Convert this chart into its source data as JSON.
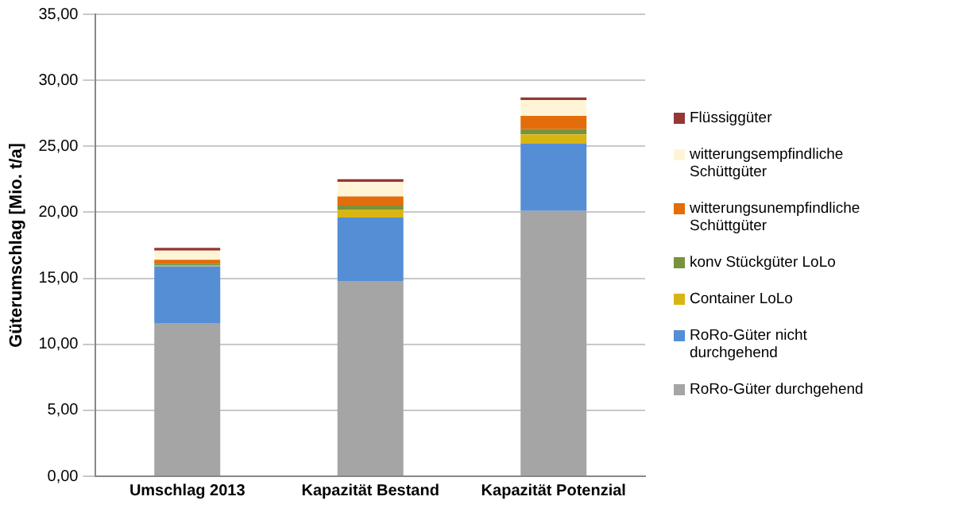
{
  "chart_data": {
    "type": "bar",
    "stacked": true,
    "ylabel": "Güterumschlag [Mio. t/a]",
    "categories": [
      "Umschlag 2013",
      "Kapazität Bestand",
      "Kapazität Potenzial"
    ],
    "series": [
      {
        "name": "RoRo-Güter durchgehend",
        "color": "#a5a5a5",
        "values": [
          11.6,
          14.8,
          20.1
        ]
      },
      {
        "name": "RoRo-Güter nicht durchgehend",
        "color": "#558ed5",
        "values": [
          4.3,
          4.8,
          5.1
        ]
      },
      {
        "name": "Container LoLo",
        "color": "#d9b514",
        "values": [
          0.1,
          0.6,
          0.7
        ]
      },
      {
        "name": "konv Stückgüter LoLo",
        "color": "#77933c",
        "values": [
          0.1,
          0.3,
          0.4
        ]
      },
      {
        "name": "witterungsunempfindliche Schüttgüter",
        "color": "#e46c0a",
        "values": [
          0.3,
          0.7,
          1.0
        ]
      },
      {
        "name": "witterungsempfindliche Schüttgüter",
        "color": "#fff5d6",
        "values": [
          0.7,
          1.1,
          1.2
        ]
      },
      {
        "name": "Flüssiggüter",
        "color": "#953735",
        "values": [
          0.2,
          0.2,
          0.2
        ]
      }
    ],
    "ylim": [
      0,
      35
    ],
    "yticks": [
      {
        "value": 0,
        "label": "0,00"
      },
      {
        "value": 5,
        "label": "5,00"
      },
      {
        "value": 10,
        "label": "10,00"
      },
      {
        "value": 15,
        "label": "15,00"
      },
      {
        "value": 20,
        "label": "20,00"
      },
      {
        "value": 25,
        "label": "25,00"
      },
      {
        "value": 30,
        "label": "30,00"
      },
      {
        "value": 35,
        "label": "35,00"
      }
    ],
    "grid": "y",
    "legend": "right"
  }
}
